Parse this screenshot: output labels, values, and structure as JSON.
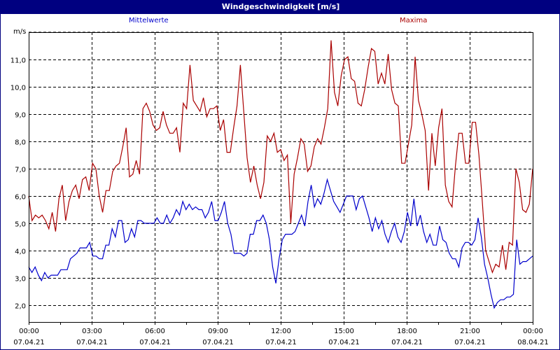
{
  "window": {
    "title": "Windgeschwindigkeit [m/s]"
  },
  "legend": {
    "mean_label": "Mittelwerte",
    "max_label": "Maxima"
  },
  "colors": {
    "mean": "#0000cc",
    "max": "#aa0000",
    "title_bg": "#000080",
    "grid": "#000000"
  },
  "chart_data": {
    "type": "line",
    "title": "Windgeschwindigkeit [m/s]",
    "xlabel": "",
    "ylabel": "m/s",
    "ylim": [
      1.4,
      12.0
    ],
    "yticks": [
      2.0,
      3.0,
      4.0,
      5.0,
      6.0,
      7.0,
      8.0,
      9.0,
      10.0,
      11.0
    ],
    "ytick_labels": [
      "2,0",
      "3,0",
      "4,0",
      "5,0",
      "6,0",
      "7,0",
      "8,0",
      "9,0",
      "10,0",
      "11,0"
    ],
    "xticks": [
      {
        "time": "00:00",
        "date": "07.04.21"
      },
      {
        "time": "03:00",
        "date": "07.04.21"
      },
      {
        "time": "06:00",
        "date": "07.04.21"
      },
      {
        "time": "09:00",
        "date": "07.04.21"
      },
      {
        "time": "12:00",
        "date": "07.04.21"
      },
      {
        "time": "15:00",
        "date": "07.04.21"
      },
      {
        "time": "18:00",
        "date": "07.04.21"
      },
      {
        "time": "21:00",
        "date": "07.04.21"
      },
      {
        "time": "00:00",
        "date": "08.04.21"
      }
    ],
    "grid": true,
    "x_interval_minutes": 10,
    "series": [
      {
        "name": "Mittelwerte",
        "color": "#0000cc",
        "values": [
          3.4,
          3.2,
          3.4,
          3.1,
          2.9,
          3.2,
          3.0,
          3.1,
          3.1,
          3.1,
          3.3,
          3.3,
          3.3,
          3.7,
          3.8,
          3.9,
          4.1,
          4.1,
          4.1,
          4.3,
          3.8,
          3.8,
          3.7,
          3.7,
          4.2,
          4.2,
          4.8,
          4.5,
          5.1,
          5.1,
          4.3,
          4.4,
          4.8,
          4.5,
          5.1,
          5.1,
          5.0,
          5.0,
          5.0,
          5.0,
          5.2,
          5.0,
          5.0,
          5.3,
          5.0,
          5.2,
          5.5,
          5.3,
          5.8,
          5.5,
          5.7,
          5.5,
          5.6,
          5.5,
          5.5,
          5.2,
          5.4,
          5.8,
          5.1,
          5.1,
          5.4,
          5.8,
          5.0,
          4.6,
          3.9,
          3.9,
          3.9,
          3.8,
          3.9,
          4.6,
          4.6,
          5.1,
          5.1,
          5.3,
          5.0,
          4.4,
          3.4,
          2.8,
          3.7,
          4.4,
          4.6,
          4.6,
          4.6,
          4.7,
          5.0,
          5.3,
          4.9,
          5.8,
          6.4,
          5.6,
          5.9,
          5.7,
          6.1,
          6.6,
          6.2,
          5.8,
          5.6,
          5.4,
          5.7,
          6.0,
          6.0,
          6.0,
          5.5,
          5.9,
          6.0,
          5.6,
          5.2,
          4.7,
          5.2,
          4.8,
          5.1,
          4.6,
          4.3,
          4.7,
          5.0,
          4.5,
          4.3,
          4.7,
          5.4,
          4.9,
          5.9,
          4.9,
          5.3,
          4.7,
          4.3,
          4.6,
          4.2,
          4.2,
          4.9,
          4.4,
          4.3,
          3.9,
          3.7,
          3.7,
          3.4,
          4.1,
          4.3,
          4.3,
          4.2,
          4.4,
          5.2,
          4.5,
          3.5,
          3.0,
          2.4,
          1.9,
          2.1,
          2.2,
          2.2,
          2.3,
          2.3,
          2.4,
          4.4,
          3.5,
          3.6,
          3.6,
          3.7,
          3.8
        ]
      },
      {
        "name": "Maxima",
        "color": "#aa0000",
        "values": [
          6.0,
          5.1,
          5.3,
          5.2,
          5.3,
          5.1,
          4.8,
          5.4,
          4.7,
          5.9,
          6.4,
          5.1,
          5.8,
          6.2,
          6.4,
          5.9,
          6.6,
          6.7,
          6.2,
          7.2,
          7.0,
          6.0,
          5.4,
          6.2,
          6.2,
          6.9,
          7.1,
          7.2,
          7.8,
          8.5,
          6.7,
          6.8,
          7.3,
          6.8,
          9.2,
          9.4,
          9.1,
          8.6,
          8.4,
          8.5,
          9.1,
          8.6,
          8.3,
          8.3,
          8.5,
          7.6,
          9.4,
          9.2,
          10.8,
          9.5,
          9.3,
          9.1,
          9.6,
          8.9,
          9.2,
          9.2,
          9.3,
          8.4,
          8.8,
          7.6,
          7.6,
          8.5,
          9.3,
          10.8,
          9.1,
          7.4,
          6.5,
          7.1,
          6.4,
          5.9,
          6.5,
          8.2,
          8.0,
          8.3,
          7.6,
          7.7,
          7.3,
          7.5,
          5.0,
          6.8,
          7.4,
          8.1,
          7.9,
          6.9,
          7.1,
          7.8,
          8.1,
          7.9,
          8.5,
          9.2,
          11.7,
          9.8,
          9.3,
          10.4,
          11.0,
          11.1,
          10.3,
          10.2,
          9.4,
          9.3,
          9.9,
          10.7,
          11.4,
          11.3,
          10.1,
          10.5,
          10.1,
          11.2,
          9.9,
          9.4,
          9.3,
          7.2,
          7.2,
          7.9,
          8.6,
          11.1,
          9.5,
          9.0,
          8.4,
          6.2,
          8.3,
          7.1,
          8.5,
          9.2,
          6.4,
          5.8,
          5.6,
          7.1,
          8.3,
          8.3,
          7.2,
          7.2,
          8.7,
          8.7,
          7.5,
          5.8,
          4.0,
          3.6,
          3.2,
          3.5,
          3.4,
          4.2,
          3.3,
          4.3,
          4.2,
          7.0,
          6.5,
          5.5,
          5.4,
          5.7,
          7.0
        ]
      }
    ]
  }
}
